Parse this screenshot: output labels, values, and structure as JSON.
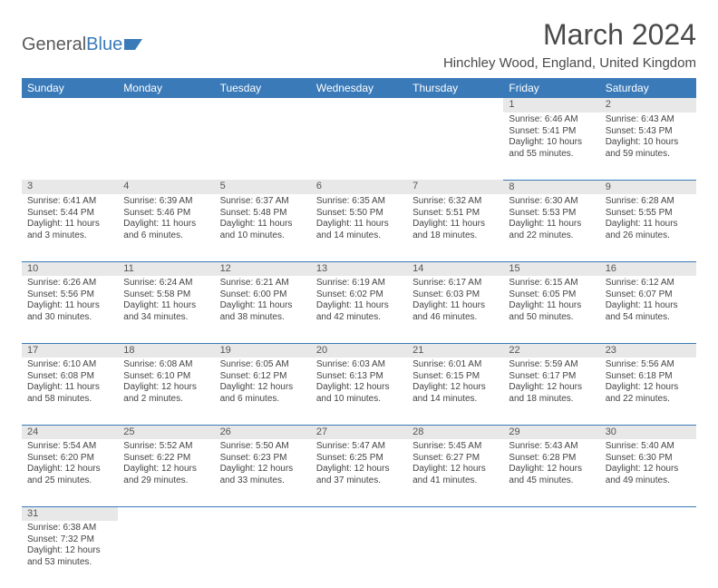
{
  "logo": {
    "text1": "General",
    "text2": "Blue"
  },
  "title": "March 2024",
  "location": "Hinchley Wood, England, United Kingdom",
  "colors": {
    "header_bg": "#3a7ab8",
    "daynum_bg": "#e8e8e8"
  },
  "day_headers": [
    "Sunday",
    "Monday",
    "Tuesday",
    "Wednesday",
    "Thursday",
    "Friday",
    "Saturday"
  ],
  "weeks": [
    [
      null,
      null,
      null,
      null,
      null,
      {
        "n": "1",
        "sr": "Sunrise: 6:46 AM",
        "ss": "Sunset: 5:41 PM",
        "dl": "Daylight: 10 hours and 55 minutes."
      },
      {
        "n": "2",
        "sr": "Sunrise: 6:43 AM",
        "ss": "Sunset: 5:43 PM",
        "dl": "Daylight: 10 hours and 59 minutes."
      }
    ],
    [
      {
        "n": "3",
        "sr": "Sunrise: 6:41 AM",
        "ss": "Sunset: 5:44 PM",
        "dl": "Daylight: 11 hours and 3 minutes."
      },
      {
        "n": "4",
        "sr": "Sunrise: 6:39 AM",
        "ss": "Sunset: 5:46 PM",
        "dl": "Daylight: 11 hours and 6 minutes."
      },
      {
        "n": "5",
        "sr": "Sunrise: 6:37 AM",
        "ss": "Sunset: 5:48 PM",
        "dl": "Daylight: 11 hours and 10 minutes."
      },
      {
        "n": "6",
        "sr": "Sunrise: 6:35 AM",
        "ss": "Sunset: 5:50 PM",
        "dl": "Daylight: 11 hours and 14 minutes."
      },
      {
        "n": "7",
        "sr": "Sunrise: 6:32 AM",
        "ss": "Sunset: 5:51 PM",
        "dl": "Daylight: 11 hours and 18 minutes."
      },
      {
        "n": "8",
        "sr": "Sunrise: 6:30 AM",
        "ss": "Sunset: 5:53 PM",
        "dl": "Daylight: 11 hours and 22 minutes."
      },
      {
        "n": "9",
        "sr": "Sunrise: 6:28 AM",
        "ss": "Sunset: 5:55 PM",
        "dl": "Daylight: 11 hours and 26 minutes."
      }
    ],
    [
      {
        "n": "10",
        "sr": "Sunrise: 6:26 AM",
        "ss": "Sunset: 5:56 PM",
        "dl": "Daylight: 11 hours and 30 minutes."
      },
      {
        "n": "11",
        "sr": "Sunrise: 6:24 AM",
        "ss": "Sunset: 5:58 PM",
        "dl": "Daylight: 11 hours and 34 minutes."
      },
      {
        "n": "12",
        "sr": "Sunrise: 6:21 AM",
        "ss": "Sunset: 6:00 PM",
        "dl": "Daylight: 11 hours and 38 minutes."
      },
      {
        "n": "13",
        "sr": "Sunrise: 6:19 AM",
        "ss": "Sunset: 6:02 PM",
        "dl": "Daylight: 11 hours and 42 minutes."
      },
      {
        "n": "14",
        "sr": "Sunrise: 6:17 AM",
        "ss": "Sunset: 6:03 PM",
        "dl": "Daylight: 11 hours and 46 minutes."
      },
      {
        "n": "15",
        "sr": "Sunrise: 6:15 AM",
        "ss": "Sunset: 6:05 PM",
        "dl": "Daylight: 11 hours and 50 minutes."
      },
      {
        "n": "16",
        "sr": "Sunrise: 6:12 AM",
        "ss": "Sunset: 6:07 PM",
        "dl": "Daylight: 11 hours and 54 minutes."
      }
    ],
    [
      {
        "n": "17",
        "sr": "Sunrise: 6:10 AM",
        "ss": "Sunset: 6:08 PM",
        "dl": "Daylight: 11 hours and 58 minutes."
      },
      {
        "n": "18",
        "sr": "Sunrise: 6:08 AM",
        "ss": "Sunset: 6:10 PM",
        "dl": "Daylight: 12 hours and 2 minutes."
      },
      {
        "n": "19",
        "sr": "Sunrise: 6:05 AM",
        "ss": "Sunset: 6:12 PM",
        "dl": "Daylight: 12 hours and 6 minutes."
      },
      {
        "n": "20",
        "sr": "Sunrise: 6:03 AM",
        "ss": "Sunset: 6:13 PM",
        "dl": "Daylight: 12 hours and 10 minutes."
      },
      {
        "n": "21",
        "sr": "Sunrise: 6:01 AM",
        "ss": "Sunset: 6:15 PM",
        "dl": "Daylight: 12 hours and 14 minutes."
      },
      {
        "n": "22",
        "sr": "Sunrise: 5:59 AM",
        "ss": "Sunset: 6:17 PM",
        "dl": "Daylight: 12 hours and 18 minutes."
      },
      {
        "n": "23",
        "sr": "Sunrise: 5:56 AM",
        "ss": "Sunset: 6:18 PM",
        "dl": "Daylight: 12 hours and 22 minutes."
      }
    ],
    [
      {
        "n": "24",
        "sr": "Sunrise: 5:54 AM",
        "ss": "Sunset: 6:20 PM",
        "dl": "Daylight: 12 hours and 25 minutes."
      },
      {
        "n": "25",
        "sr": "Sunrise: 5:52 AM",
        "ss": "Sunset: 6:22 PM",
        "dl": "Daylight: 12 hours and 29 minutes."
      },
      {
        "n": "26",
        "sr": "Sunrise: 5:50 AM",
        "ss": "Sunset: 6:23 PM",
        "dl": "Daylight: 12 hours and 33 minutes."
      },
      {
        "n": "27",
        "sr": "Sunrise: 5:47 AM",
        "ss": "Sunset: 6:25 PM",
        "dl": "Daylight: 12 hours and 37 minutes."
      },
      {
        "n": "28",
        "sr": "Sunrise: 5:45 AM",
        "ss": "Sunset: 6:27 PM",
        "dl": "Daylight: 12 hours and 41 minutes."
      },
      {
        "n": "29",
        "sr": "Sunrise: 5:43 AM",
        "ss": "Sunset: 6:28 PM",
        "dl": "Daylight: 12 hours and 45 minutes."
      },
      {
        "n": "30",
        "sr": "Sunrise: 5:40 AM",
        "ss": "Sunset: 6:30 PM",
        "dl": "Daylight: 12 hours and 49 minutes."
      }
    ],
    [
      {
        "n": "31",
        "sr": "Sunrise: 6:38 AM",
        "ss": "Sunset: 7:32 PM",
        "dl": "Daylight: 12 hours and 53 minutes."
      },
      null,
      null,
      null,
      null,
      null,
      null
    ]
  ]
}
